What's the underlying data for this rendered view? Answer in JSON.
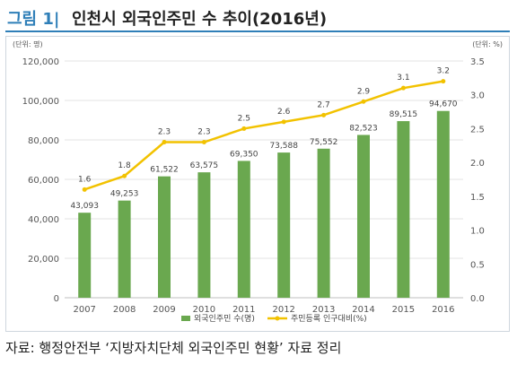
{
  "figure": {
    "label": "그림 1|",
    "title": "인천시 외국인주민 수 추이(2016년)",
    "source": "자료: 행정안전부 ‘지방자치단체 외국인주민 현황’ 자료 정리"
  },
  "chart_data": {
    "type": "bar",
    "categories": [
      "2007",
      "2008",
      "2009",
      "2010",
      "2011",
      "2012",
      "2013",
      "2014",
      "2015",
      "2016"
    ],
    "series": [
      {
        "name": "외국인주민 수(명)",
        "type": "bar",
        "axis": "left",
        "color": "#6aa84f",
        "values": [
          43093,
          49253,
          61522,
          63575,
          69350,
          73588,
          75552,
          82523,
          89515,
          94670
        ],
        "labels": [
          "43,093",
          "49,253",
          "61,522",
          "63,575",
          "69,350",
          "73,588",
          "75,552",
          "82,523",
          "89,515",
          "94,670"
        ]
      },
      {
        "name": "주민등록 인구대비(%)",
        "type": "line",
        "axis": "right",
        "color": "#f2c200",
        "values": [
          1.6,
          1.8,
          2.3,
          2.3,
          2.5,
          2.6,
          2.7,
          2.9,
          3.1,
          3.2
        ],
        "labels": [
          "1.6",
          "1.8",
          "2.3",
          "2.3",
          "2.5",
          "2.6",
          "2.7",
          "2.9",
          "3.1",
          "3.2"
        ]
      }
    ],
    "y_left": {
      "unit": "(단위: 명)",
      "range": [
        0,
        120000
      ],
      "ticks": [
        "0",
        "20,000",
        "40,000",
        "60,000",
        "80,000",
        "100,000",
        "120,000"
      ]
    },
    "y_right": {
      "unit": "(단위: %)",
      "range": [
        0,
        3.5
      ],
      "ticks": [
        "0.0",
        "0.5",
        "1.0",
        "1.5",
        "2.0",
        "2.5",
        "3.0",
        "3.5"
      ]
    },
    "grid": true,
    "legend": "bottom"
  }
}
